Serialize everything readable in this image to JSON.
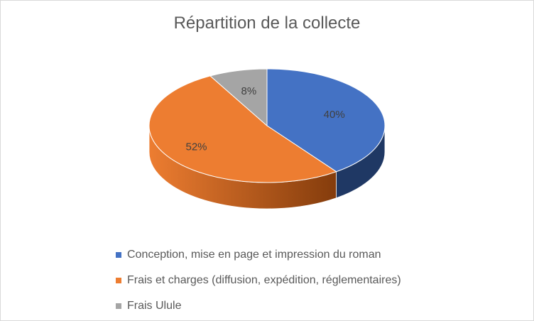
{
  "chart_data": {
    "type": "pie",
    "title": "Répartition de la collecte",
    "three_d": true,
    "legend_position": "bottom",
    "categories": [
      "Conception, mise en page et impression du roman",
      "Frais et charges (diffusion, expédition, réglementaires)",
      "Frais Ulule"
    ],
    "values": [
      40,
      52,
      8
    ],
    "data_labels": [
      "40%",
      "52%",
      "8%"
    ],
    "colors": [
      "#4472c4",
      "#ed7d31",
      "#a5a5a5"
    ],
    "side_colors": [
      "#1f3864",
      "#843c0c",
      "#595959"
    ]
  }
}
